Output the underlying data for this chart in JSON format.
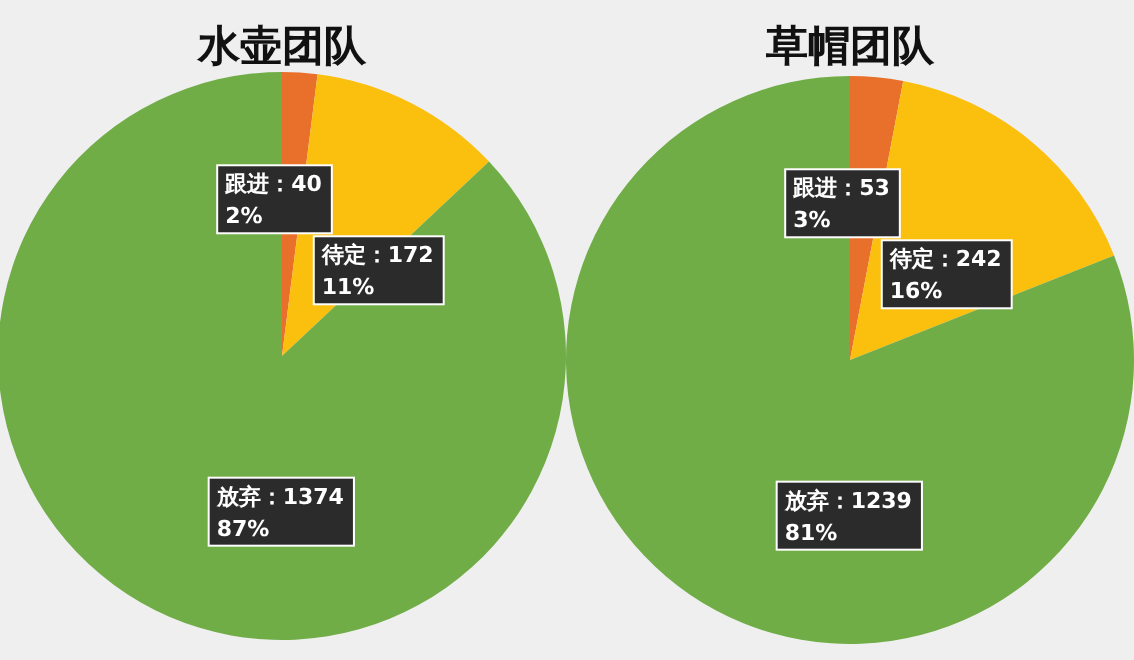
{
  "chart_data": [
    {
      "type": "pie",
      "title": "水壶团队",
      "categories": [
        "跟进：40",
        "待定：172",
        "放弃：1374"
      ],
      "values": [
        2,
        11,
        87
      ],
      "colors": [
        "#e8702a",
        "#fbbf0e",
        "#70ad47"
      ],
      "value_labels": [
        "2%",
        "11%",
        "87%"
      ]
    },
    {
      "type": "pie",
      "title": "草帽团队",
      "categories": [
        "跟进：53",
        "待定：242",
        "放弃：1239"
      ],
      "values": [
        3,
        16,
        81
      ],
      "colors": [
        "#e8702a",
        "#fbbf0e",
        "#70ad47"
      ],
      "value_labels": [
        "3%",
        "16%",
        "81%"
      ]
    }
  ]
}
